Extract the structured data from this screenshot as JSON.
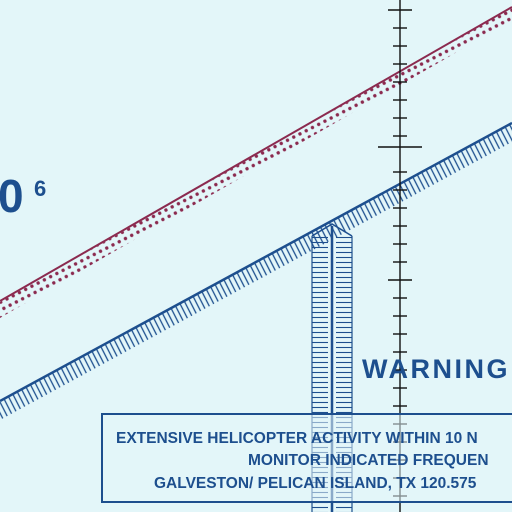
{
  "map": {
    "background_color": "#e3f6f9",
    "altitude_label": {
      "main": "0",
      "superscript": "6"
    },
    "warning_label": "WARNING",
    "notice": {
      "line1": "EXTENSIVE HELICOPTER ACTIVITY WITHIN 10 N",
      "line2": "MONITOR INDICATED FREQUEN",
      "line3": "GALVESTON/ PELICAN ISLAND, TX 120.575"
    },
    "colors": {
      "maroon_boundary": "#8b2a4f",
      "blue_boundary": "#1d4f8e",
      "meridian": "#111111"
    }
  }
}
